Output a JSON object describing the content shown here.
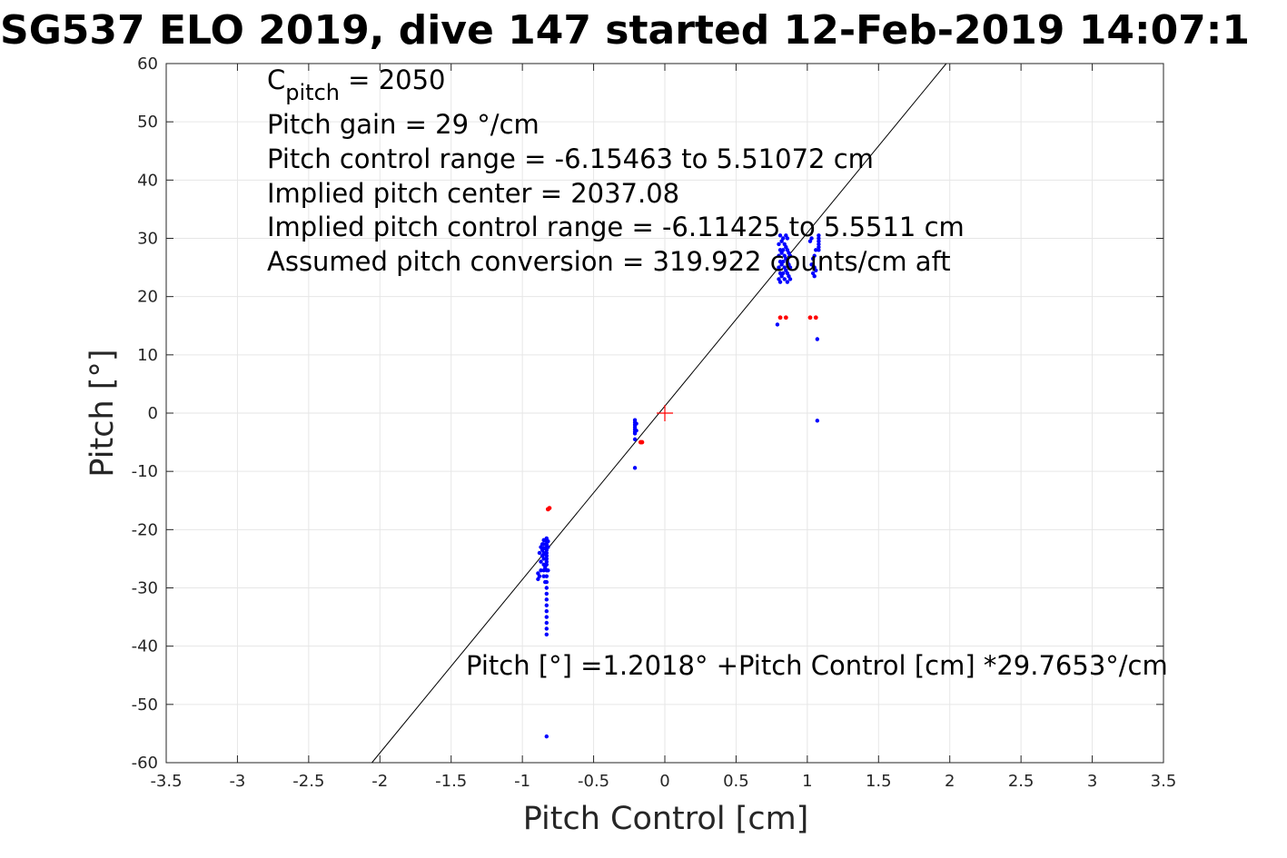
{
  "chart_data": {
    "type": "scatter",
    "title": "SG537 ELO 2019, dive 147 started 12-Feb-2019 14:07:1",
    "xlabel": "Pitch Control [cm]",
    "ylabel": "Pitch [°]",
    "xlim": [
      -3.5,
      3.5
    ],
    "ylim": [
      -60,
      60
    ],
    "xticks": [
      -3.5,
      -3,
      -2.5,
      -2,
      -1.5,
      -1,
      -0.5,
      0,
      0.5,
      1,
      1.5,
      2,
      2.5,
      3,
      3.5
    ],
    "xtick_labels": [
      "-3.5",
      "-3",
      "-2.5",
      "-2",
      "-1.5",
      "-1",
      "-0.5",
      "0",
      "0.5",
      "1",
      "1.5",
      "2",
      "2.5",
      "3",
      "3.5"
    ],
    "yticks": [
      -60,
      -50,
      -40,
      -30,
      -20,
      -10,
      0,
      10,
      20,
      30,
      40,
      50,
      60
    ],
    "ytick_labels": [
      "-60",
      "-50",
      "-40",
      "-30",
      "-20",
      "-10",
      "0",
      "10",
      "20",
      "30",
      "40",
      "50",
      "60"
    ],
    "grid": true,
    "annotations": {
      "c_pitch_symbol": "C",
      "c_pitch_subscript": "pitch",
      "c_pitch_value": " = 2050",
      "lines": [
        "Pitch gain = 29 °/cm",
        "Pitch control range = -6.15463 to 5.51072 cm",
        "Implied pitch center = 2037.08",
        "Implied pitch control range = -6.11425 to 5.5511 cm",
        "Assumed pitch conversion = 319.922 counts/cm aft"
      ],
      "fit_label": "Pitch [°] =1.2018° +Pitch Control [cm] *29.7653°/cm"
    },
    "fit_line": {
      "intercept": 1.2018,
      "slope": 29.7653
    },
    "center_marker": {
      "x": 0,
      "y": 0,
      "color": "#ff0000"
    },
    "series_colors": {
      "blue": "#0000ff",
      "red": "#ff0000",
      "line": "#000000"
    },
    "blue_points": [
      [
        -0.83,
        -21.5
      ],
      [
        -0.83,
        -22.0
      ],
      [
        -0.83,
        -22.5
      ],
      [
        -0.83,
        -23.0
      ],
      [
        -0.83,
        -23.5
      ],
      [
        -0.83,
        -24.0
      ],
      [
        -0.83,
        -24.5
      ],
      [
        -0.83,
        -25.0
      ],
      [
        -0.83,
        -25.5
      ],
      [
        -0.83,
        -26.0
      ],
      [
        -0.83,
        -27.0
      ],
      [
        -0.83,
        -28.0
      ],
      [
        -0.83,
        -29.0
      ],
      [
        -0.83,
        -30.0
      ],
      [
        -0.83,
        -31.0
      ],
      [
        -0.83,
        -32.0
      ],
      [
        -0.83,
        -33.0
      ],
      [
        -0.83,
        -34.0
      ],
      [
        -0.83,
        -35.0
      ],
      [
        -0.83,
        -36.0
      ],
      [
        -0.83,
        -37.0
      ],
      [
        -0.83,
        -38.0
      ],
      [
        -0.85,
        -21.8
      ],
      [
        -0.85,
        -22.5
      ],
      [
        -0.85,
        -23.2
      ],
      [
        -0.85,
        -24.0
      ],
      [
        -0.85,
        -25.0
      ],
      [
        -0.85,
        -26.0
      ],
      [
        -0.85,
        -27.0
      ],
      [
        -0.85,
        -28.0
      ],
      [
        -0.86,
        -22.5
      ],
      [
        -0.86,
        -23.5
      ],
      [
        -0.86,
        -24.5
      ],
      [
        -0.87,
        -23.0
      ],
      [
        -0.87,
        -25.5
      ],
      [
        -0.87,
        -27.0
      ],
      [
        -0.88,
        -24.0
      ],
      [
        -0.88,
        -28.0
      ],
      [
        -0.89,
        -27.5
      ],
      [
        -0.89,
        -28.5
      ],
      [
        -0.84,
        -24.2
      ],
      [
        -0.84,
        -26.5
      ],
      [
        -0.84,
        -29.0
      ],
      [
        -0.82,
        -22.0
      ],
      [
        -0.82,
        -23.0
      ],
      [
        -0.82,
        -27.0
      ],
      [
        -0.83,
        -55.5
      ],
      [
        -0.21,
        -1.2
      ],
      [
        -0.21,
        -1.6
      ],
      [
        -0.21,
        -2.0
      ],
      [
        -0.21,
        -2.4
      ],
      [
        -0.21,
        -2.8
      ],
      [
        -0.21,
        -3.2
      ],
      [
        -0.21,
        -3.5
      ],
      [
        -0.2,
        -1.8
      ],
      [
        -0.2,
        -3.0
      ],
      [
        -0.21,
        -4.5
      ],
      [
        -0.21,
        -9.4
      ],
      [
        0.8,
        23.0
      ],
      [
        0.8,
        25.0
      ],
      [
        0.8,
        27.0
      ],
      [
        0.8,
        29.0
      ],
      [
        0.81,
        22.5
      ],
      [
        0.81,
        24.0
      ],
      [
        0.81,
        26.0
      ],
      [
        0.81,
        28.0
      ],
      [
        0.81,
        30.5
      ],
      [
        0.82,
        23.5
      ],
      [
        0.82,
        25.5
      ],
      [
        0.82,
        27.5
      ],
      [
        0.82,
        29.5
      ],
      [
        0.83,
        24.0
      ],
      [
        0.83,
        26.0
      ],
      [
        0.83,
        28.0
      ],
      [
        0.83,
        30.0
      ],
      [
        0.84,
        23.0
      ],
      [
        0.84,
        25.0
      ],
      [
        0.84,
        27.0
      ],
      [
        0.84,
        29.0
      ],
      [
        0.85,
        24.5
      ],
      [
        0.85,
        26.5
      ],
      [
        0.85,
        28.5
      ],
      [
        0.85,
        30.5
      ],
      [
        0.86,
        22.5
      ],
      [
        0.86,
        24.0
      ],
      [
        0.86,
        26.0
      ],
      [
        0.86,
        28.0
      ],
      [
        0.86,
        30.0
      ],
      [
        0.87,
        23.5
      ],
      [
        0.87,
        25.5
      ],
      [
        0.87,
        27.5
      ],
      [
        0.88,
        23.0
      ],
      [
        0.88,
        25.0
      ],
      [
        0.88,
        27.0
      ],
      [
        0.79,
        15.2
      ],
      [
        1.03,
        25.5
      ],
      [
        1.04,
        24.0
      ],
      [
        1.04,
        26.5
      ],
      [
        1.05,
        23.5
      ],
      [
        1.05,
        25.0
      ],
      [
        1.05,
        27.0
      ],
      [
        1.06,
        24.5
      ],
      [
        1.06,
        28.0
      ],
      [
        1.02,
        29.5
      ],
      [
        1.03,
        30.0
      ],
      [
        1.08,
        28.0
      ],
      [
        1.08,
        28.5
      ],
      [
        1.08,
        29.0
      ],
      [
        1.08,
        29.5
      ],
      [
        1.08,
        30.0
      ],
      [
        1.08,
        30.5
      ],
      [
        1.07,
        12.7
      ],
      [
        1.07,
        -1.3
      ]
    ],
    "red_points": [
      [
        -0.82,
        -16.5
      ],
      [
        -0.81,
        -16.3
      ],
      [
        -0.17,
        -5.0
      ],
      [
        -0.16,
        -5.0
      ],
      [
        0.81,
        16.4
      ],
      [
        0.85,
        16.4
      ],
      [
        1.02,
        16.4
      ],
      [
        1.06,
        16.4
      ]
    ]
  }
}
